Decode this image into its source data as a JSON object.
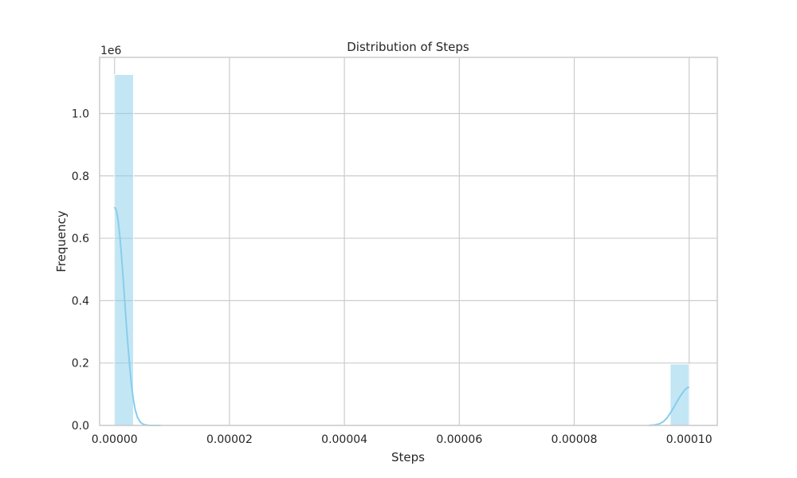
{
  "chart_data": {
    "type": "bar",
    "title": "Distribution of Steps",
    "xlabel": "Steps",
    "ylabel": "Frequency",
    "y_offset_text": "1e6",
    "xlim": [
      -2.6e-06,
      0.0001049
    ],
    "ylim": [
      0,
      1180000
    ],
    "x_ticks": [
      0,
      2e-05,
      4e-05,
      6e-05,
      8e-05,
      0.0001
    ],
    "x_tick_labels": [
      "0.00000",
      "0.00002",
      "0.00004",
      "0.00006",
      "0.00008",
      "0.00010"
    ],
    "y_ticks": [
      0,
      200000,
      400000,
      600000,
      800000,
      1000000
    ],
    "y_tick_labels": [
      "0.0",
      "0.2",
      "0.4",
      "0.6",
      "0.8",
      "1.0"
    ],
    "bins": [
      {
        "x0": 0,
        "x1": 3.3e-06,
        "count": 1125000
      },
      {
        "x0": 9.67e-05,
        "x1": 0.0001,
        "count": 197000
      }
    ],
    "kde_left": {
      "x": [
        0,
        3e-07,
        6e-07,
        9e-07,
        1.2e-06,
        1.5e-06,
        1.8e-06,
        2.1e-06,
        2.4e-06,
        2.7e-06,
        3e-06,
        3.3e-06,
        3.6e-06,
        4e-06,
        4.5e-06,
        5e-06,
        5.5e-06,
        6e-06,
        7e-06,
        8e-06
      ],
      "y": [
        700000,
        690000,
        660000,
        610000,
        545000,
        470000,
        390000,
        310000,
        240000,
        175000,
        120000,
        80000,
        50000,
        25000,
        10000,
        3500,
        1200,
        400,
        80,
        0
      ]
    },
    "kde_right": {
      "x": [
        9.3e-05,
        9.4e-05,
        9.48e-05,
        9.55e-05,
        9.62e-05,
        9.68e-05,
        9.74e-05,
        9.8e-05,
        9.86e-05,
        9.92e-05,
        9.96e-05,
        0.0001
      ],
      "y": [
        0,
        1500,
        5000,
        12000,
        25000,
        42000,
        60000,
        80000,
        98000,
        113000,
        120000,
        123000
      ]
    },
    "grid": true,
    "colors": {
      "bar": "#87ceeb",
      "kde": "#87ceeb",
      "grid": "#cccccc",
      "spine": "#cccccc",
      "text": "#262626"
    }
  }
}
